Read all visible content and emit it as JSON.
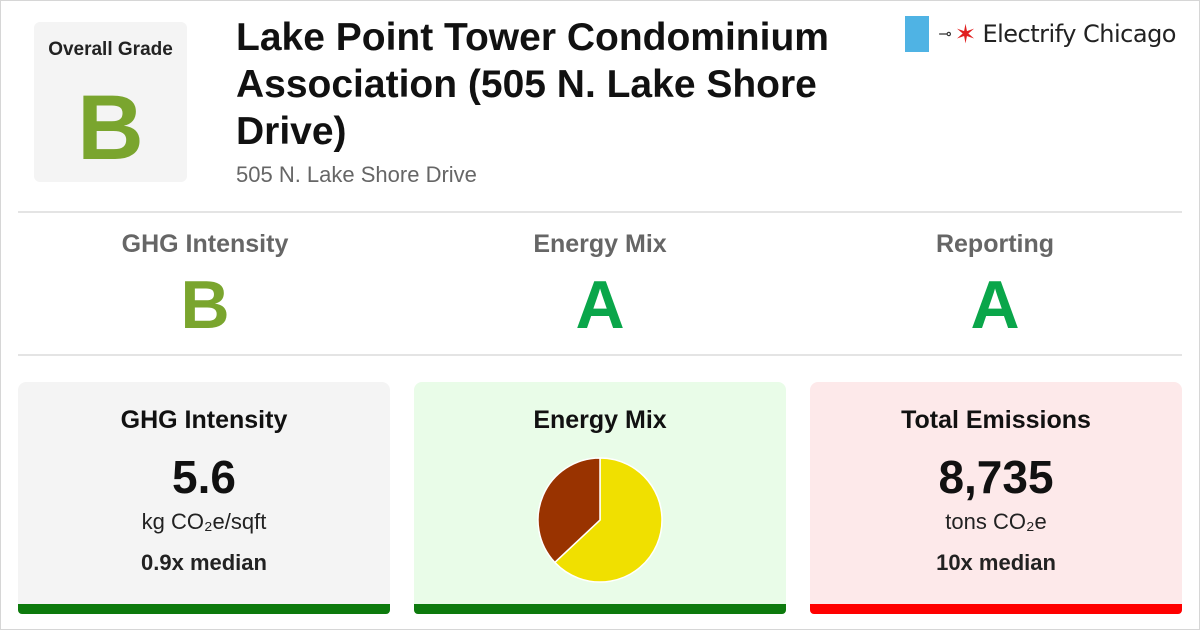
{
  "header": {
    "overall_label": "Overall Grade",
    "overall_grade": "B",
    "title": "Lake Point Tower Condominium Association (505 N. Lake Shore Drive)",
    "address": "505 N. Lake Shore Drive"
  },
  "logo": {
    "plug_glyph": "⊸",
    "star_glyph": "✶",
    "text": "Electrify Chicago"
  },
  "subgrades": [
    {
      "name": "GHG Intensity",
      "grade": "B"
    },
    {
      "name": "Energy Mix",
      "grade": "A"
    },
    {
      "name": "Reporting",
      "grade": "A"
    }
  ],
  "cards": {
    "ghg": {
      "title": "GHG Intensity",
      "value": "5.6",
      "unit": "kg CO₂e/sqft",
      "median": "0.9x median"
    },
    "mix": {
      "title": "Energy Mix"
    },
    "emissions": {
      "title": "Total Emissions",
      "value": "8,735",
      "unit": "tons CO₂e",
      "median": "10x median"
    }
  },
  "chart_data": {
    "type": "pie",
    "slices": [
      {
        "value": 63,
        "color": "#f0e000"
      },
      {
        "value": 37,
        "color": "#993300"
      }
    ]
  },
  "colors": {
    "grade_b": "#7aa52e",
    "grade_a": "#0aa64a",
    "logo_blue": "#4fb3e4",
    "logo_red": "#e02020",
    "card_neutral_bg": "#f4f4f4",
    "card_good_bg": "#e9fce8",
    "card_bad_bg": "#fde9ea",
    "bar_green": "#0d7a0d",
    "bar_red": "#ff0000"
  }
}
